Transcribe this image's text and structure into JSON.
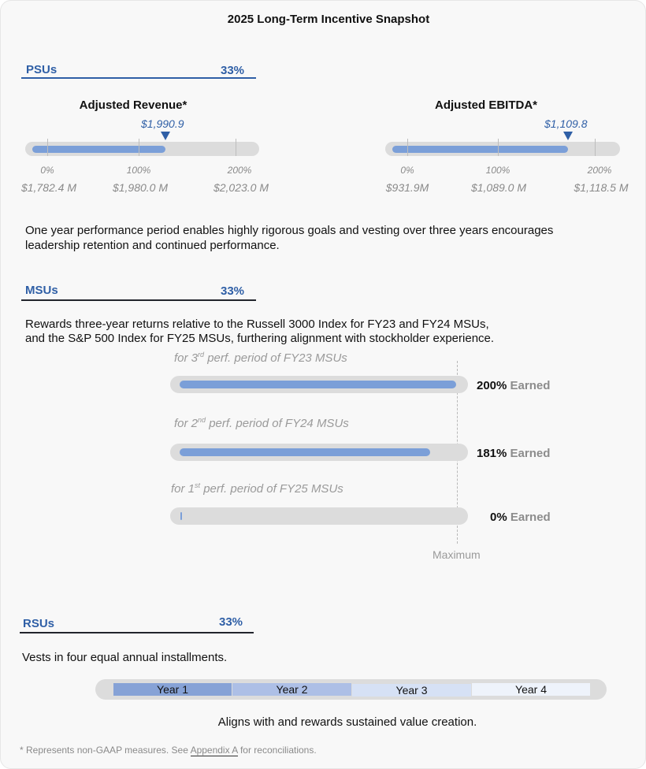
{
  "title": "2025 Long-Term Incentive Snapshot",
  "psu": {
    "name": "PSUs",
    "pct": "33%",
    "metrics": [
      {
        "title": "Adjusted Revenue*",
        "value_label": "$1,990.9",
        "attainment": 1.28,
        "ticks": [
          {
            "pct": "0%",
            "val": "$1,782.4 M"
          },
          {
            "pct": "100%",
            "val": "$1,980.0 M"
          },
          {
            "pct": "200%",
            "val": "$2,023.0 M"
          }
        ]
      },
      {
        "title": "Adjusted EBITDA*",
        "value_label": "$1,109.8",
        "attainment": 1.72,
        "ticks": [
          {
            "pct": "0%",
            "val": "$931.9M"
          },
          {
            "pct": "100%",
            "val": "$1,089.0 M"
          },
          {
            "pct": "200%",
            "val": "$1,118.5 M"
          }
        ]
      }
    ],
    "description": "One year performance period enables highly rigorous goals and vesting over three years encourages leadership retention and continued performance."
  },
  "msu": {
    "name": "MSUs",
    "pct": "33%",
    "description_line1": "Rewards three-year returns relative to the Russell 3000 Index for FY23 and FY24 MSUs,",
    "description_line2": "and the S&P 500 Index for FY25 MSUs, furthering alignment with stockholder experience.",
    "periods": [
      {
        "prefix": "for 3",
        "sup": "rd",
        "suffix": " perf. period of FY23 MSUs",
        "earned_pct": "200%",
        "earned_word": "Earned",
        "value": 200
      },
      {
        "prefix": "for 2",
        "sup": "nd",
        "suffix": " perf. period of FY24 MSUs",
        "earned_pct": "181%",
        "earned_word": "Earned",
        "value": 181
      },
      {
        "prefix": "for 1",
        "sup": "st",
        "suffix": " perf. period of FY25 MSUs",
        "earned_pct": "0%",
        "earned_word": "Earned",
        "value": 0
      }
    ],
    "max_value": 200,
    "maximum_label": "Maximum"
  },
  "rsu": {
    "name": "RSUs",
    "pct": "33%",
    "description": "Vests in four equal annual installments.",
    "years": [
      {
        "label": "Year 1",
        "color": "#86a2d6"
      },
      {
        "label": "Year 2",
        "color": "#adbfe6"
      },
      {
        "label": "Year 3",
        "color": "#d6e1f5"
      },
      {
        "label": "Year 4",
        "color": "#eef3fb"
      }
    ],
    "tagline": "Aligns with and rewards sustained value creation."
  },
  "footnote": {
    "before": "* Represents non-GAAP measures.  See ",
    "link": "Appendix A",
    "after": " for reconciliations."
  },
  "colors": {
    "accent": "#2f5fa6",
    "fill": "#7b9fd8",
    "track": "#dcdcdc"
  },
  "chart_data": [
    {
      "type": "bar",
      "title": "Adjusted Revenue*",
      "unit": "$M",
      "thresholds": [
        {
          "pct": 0,
          "value": 1782.4
        },
        {
          "pct": 100,
          "value": 1980.0
        },
        {
          "pct": 200,
          "value": 2023.0
        }
      ],
      "actual": 1990.9
    },
    {
      "type": "bar",
      "title": "Adjusted EBITDA*",
      "unit": "$M",
      "thresholds": [
        {
          "pct": 0,
          "value": 931.9
        },
        {
          "pct": 100,
          "value": 1089.0
        },
        {
          "pct": 200,
          "value": 1118.5
        }
      ],
      "actual": 1109.8
    },
    {
      "type": "bar",
      "categories": [
        "for 3rd perf. period of FY23 MSUs",
        "for 2nd perf. period of FY24 MSUs",
        "for 1st perf. period of FY25 MSUs"
      ],
      "values": [
        200,
        181,
        0
      ],
      "ylim": [
        0,
        200
      ]
    }
  ]
}
